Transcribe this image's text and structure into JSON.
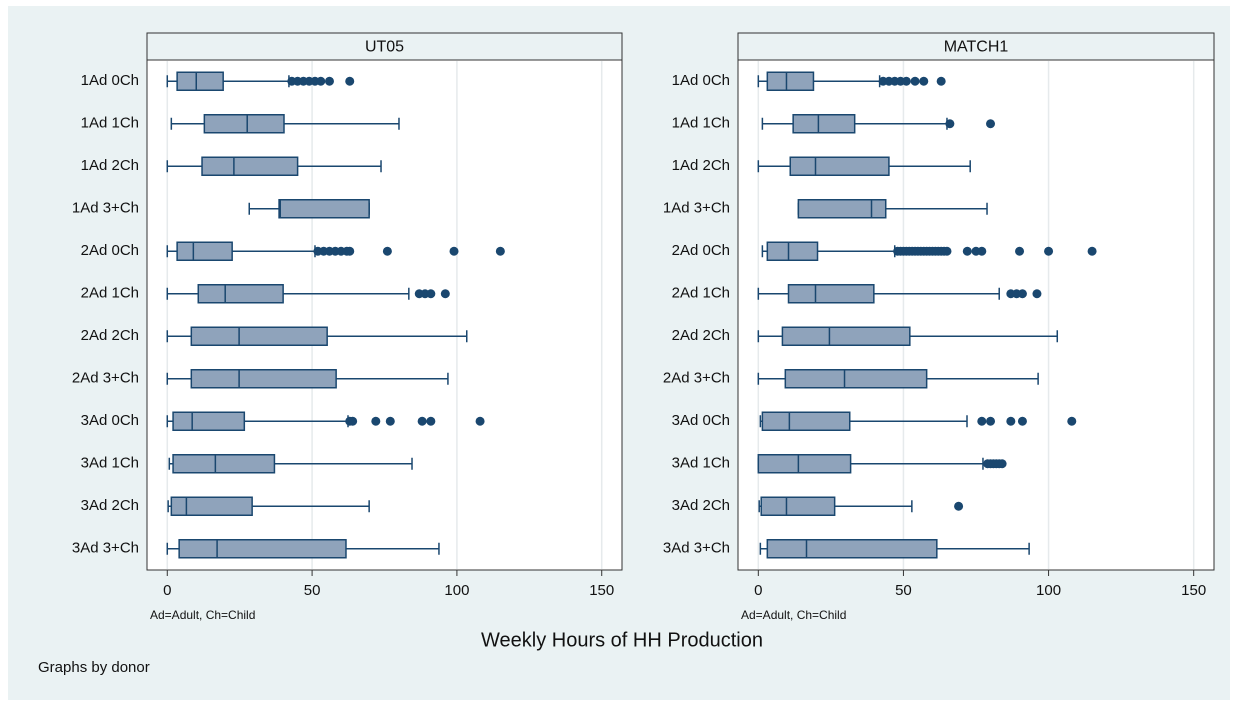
{
  "chart_data": [
    {
      "type": "box",
      "title": "UT05",
      "note": "Ad=Adult, Ch=Child",
      "color": "#8fa3bb",
      "line_color": "#1a476f",
      "xlim": [
        -7,
        157
      ],
      "xticks": [
        0,
        50,
        100,
        150
      ],
      "grid": true,
      "categories": [
        "1Ad 0Ch",
        "1Ad 1Ch",
        "1Ad 2Ch",
        "1Ad 3+Ch",
        "2Ad 0Ch",
        "2Ad 1Ch",
        "2Ad 2Ch",
        "2Ad 3+Ch",
        "3Ad 0Ch",
        "3Ad 1Ch",
        "3Ad 2Ch",
        "3Ad 3+Ch"
      ],
      "boxes": [
        {
          "min": 0,
          "q1": 3.4,
          "median": 10,
          "q3": 19.3,
          "max": 42,
          "outliers": [
            43,
            45,
            47,
            49,
            51,
            53,
            56,
            63
          ]
        },
        {
          "min": 1.4,
          "q1": 12.8,
          "median": 27.6,
          "q3": 40.3,
          "max": 80,
          "outliers": []
        },
        {
          "min": 0,
          "q1": 12,
          "median": 23,
          "q3": 45,
          "max": 73.8,
          "outliers": []
        },
        {
          "min": 28.3,
          "q1": 38.6,
          "median": 39,
          "q3": 69.7,
          "max": 69.7,
          "outliers": []
        },
        {
          "min": 0,
          "q1": 3.4,
          "median": 9,
          "q3": 22.4,
          "max": 51,
          "outliers": [
            52,
            54,
            56,
            58,
            60,
            62,
            63,
            76,
            99,
            115
          ]
        },
        {
          "min": 0,
          "q1": 10.7,
          "median": 20,
          "q3": 40,
          "max": 83.4,
          "outliers": [
            87,
            89,
            91,
            96
          ]
        },
        {
          "min": 0,
          "q1": 8.3,
          "median": 24.8,
          "q3": 55.2,
          "max": 103.4,
          "outliers": []
        },
        {
          "min": 0,
          "q1": 8.3,
          "median": 24.8,
          "q3": 58.3,
          "max": 96.9,
          "outliers": []
        },
        {
          "min": 0,
          "q1": 2,
          "median": 8.6,
          "q3": 26.6,
          "max": 62.4,
          "outliers": [
            63,
            64,
            72,
            77,
            88,
            91,
            108
          ]
        },
        {
          "min": 0.7,
          "q1": 2,
          "median": 16.6,
          "q3": 37,
          "max": 84.5,
          "outliers": []
        },
        {
          "min": 0.3,
          "q1": 1.4,
          "median": 6.6,
          "q3": 29.3,
          "max": 69.7,
          "outliers": []
        },
        {
          "min": 0,
          "q1": 4.1,
          "median": 17.2,
          "q3": 61.7,
          "max": 93.8,
          "outliers": []
        }
      ]
    },
    {
      "type": "box",
      "title": "MATCH1",
      "note": "Ad=Adult, Ch=Child",
      "color": "#8fa3bb",
      "line_color": "#1a476f",
      "xlim": [
        -7,
        157
      ],
      "xticks": [
        0,
        50,
        100,
        150
      ],
      "grid": true,
      "categories": [
        "1Ad 0Ch",
        "1Ad 1Ch",
        "1Ad 2Ch",
        "1Ad 3+Ch",
        "2Ad 0Ch",
        "2Ad 1Ch",
        "2Ad 2Ch",
        "2Ad 3+Ch",
        "3Ad 0Ch",
        "3Ad 1Ch",
        "3Ad 2Ch",
        "3Ad 3+Ch"
      ],
      "boxes": [
        {
          "min": 0,
          "q1": 3.1,
          "median": 9.7,
          "q3": 19,
          "max": 41.8,
          "outliers": [
            43,
            45,
            47,
            49,
            51,
            54,
            57,
            63
          ]
        },
        {
          "min": 1.4,
          "q1": 12,
          "median": 20.7,
          "q3": 33.2,
          "max": 65,
          "outliers": [
            66,
            80
          ]
        },
        {
          "min": 0,
          "q1": 11,
          "median": 19.7,
          "q3": 45,
          "max": 73,
          "outliers": []
        },
        {
          "min": 13.8,
          "q1": 13.8,
          "median": 39,
          "q3": 43.9,
          "max": 78.8,
          "outliers": []
        },
        {
          "min": 1.4,
          "q1": 3.1,
          "median": 10.4,
          "q3": 20.4,
          "max": 47,
          "outliers": [
            48,
            49,
            50,
            51,
            52,
            53,
            54,
            55,
            56,
            57,
            58,
            59,
            60,
            61,
            62,
            63,
            64,
            65,
            72,
            75,
            77,
            90,
            100,
            115
          ]
        },
        {
          "min": 0,
          "q1": 10.4,
          "median": 19.7,
          "q3": 39.8,
          "max": 83,
          "outliers": [
            87,
            89,
            91,
            96
          ]
        },
        {
          "min": 0,
          "q1": 8.3,
          "median": 24.5,
          "q3": 52.2,
          "max": 103,
          "outliers": []
        },
        {
          "min": 0,
          "q1": 9.3,
          "median": 29.7,
          "q3": 58,
          "max": 96.4,
          "outliers": []
        },
        {
          "min": 0.7,
          "q1": 1.4,
          "median": 10.7,
          "q3": 31.5,
          "max": 71.9,
          "outliers": [
            77,
            80,
            87,
            91,
            108
          ]
        },
        {
          "min": 0,
          "q1": 0,
          "median": 13.8,
          "q3": 31.8,
          "max": 77.4,
          "outliers": [
            79,
            80,
            81,
            82,
            83,
            84
          ]
        },
        {
          "min": 0.3,
          "q1": 1,
          "median": 9.7,
          "q3": 26.3,
          "max": 52.9,
          "outliers": [
            69
          ]
        },
        {
          "min": 0.7,
          "q1": 3.1,
          "median": 16.6,
          "q3": 61.5,
          "max": 93.3,
          "outliers": []
        }
      ]
    }
  ],
  "axis_title": "Weekly Hours of HH Production",
  "caption": "Graphs by donor"
}
